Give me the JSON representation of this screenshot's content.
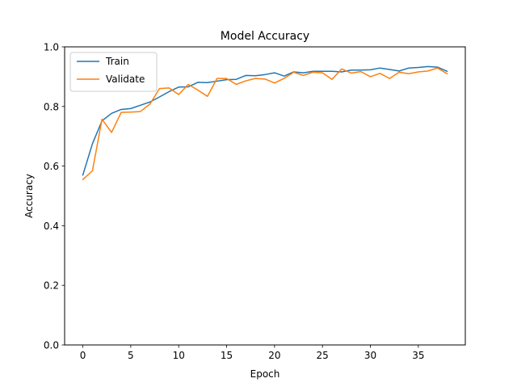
{
  "chart_data": {
    "type": "line",
    "title": "Model Accuracy",
    "xlabel": "Epoch",
    "ylabel": "Accuracy",
    "xlim": [
      -1.9,
      39.9
    ],
    "ylim": [
      0.0,
      1.0
    ],
    "xticks": [
      0,
      5,
      10,
      15,
      20,
      25,
      30,
      35
    ],
    "xtick_labels": [
      "0",
      "5",
      "10",
      "15",
      "20",
      "25",
      "30",
      "35"
    ],
    "yticks": [
      0.0,
      0.2,
      0.4,
      0.6,
      0.8,
      1.0
    ],
    "ytick_labels": [
      "0.0",
      "0.2",
      "0.4",
      "0.6",
      "0.8",
      "1.0"
    ],
    "grid": false,
    "legend_position": "upper-left",
    "x": [
      0,
      1,
      2,
      3,
      4,
      5,
      6,
      7,
      8,
      9,
      10,
      11,
      12,
      13,
      14,
      15,
      16,
      17,
      18,
      19,
      20,
      21,
      22,
      23,
      24,
      25,
      26,
      27,
      28,
      29,
      30,
      31,
      32,
      33,
      34,
      35,
      36,
      37,
      38
    ],
    "series": [
      {
        "name": "Train",
        "color": "#1f77b4",
        "values": [
          0.57,
          0.675,
          0.752,
          0.777,
          0.79,
          0.793,
          0.804,
          0.815,
          0.832,
          0.85,
          0.865,
          0.866,
          0.881,
          0.88,
          0.885,
          0.89,
          0.891,
          0.904,
          0.903,
          0.907,
          0.913,
          0.902,
          0.916,
          0.913,
          0.918,
          0.918,
          0.918,
          0.916,
          0.922,
          0.922,
          0.923,
          0.929,
          0.924,
          0.919,
          0.929,
          0.931,
          0.934,
          0.932,
          0.918
        ]
      },
      {
        "name": "Validate",
        "color": "#ff7f0e",
        "values": [
          0.555,
          0.584,
          0.757,
          0.713,
          0.78,
          0.781,
          0.783,
          0.808,
          0.86,
          0.862,
          0.84,
          0.874,
          0.855,
          0.834,
          0.894,
          0.894,
          0.874,
          0.886,
          0.894,
          0.892,
          0.879,
          0.894,
          0.915,
          0.904,
          0.915,
          0.913,
          0.891,
          0.926,
          0.912,
          0.917,
          0.9,
          0.911,
          0.894,
          0.915,
          0.91,
          0.916,
          0.919,
          0.929,
          0.91
        ]
      }
    ]
  }
}
